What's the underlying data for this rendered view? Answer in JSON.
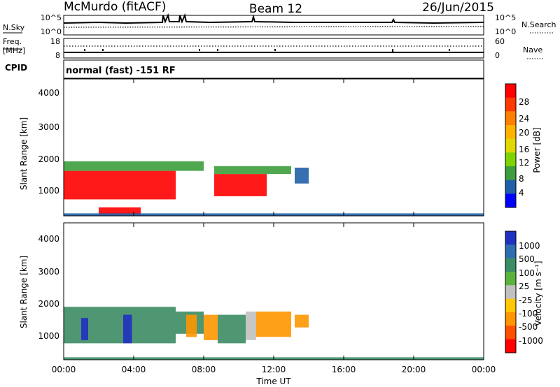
{
  "header": {
    "station": "McMurdo (fitACF)",
    "beam": "Beam 12",
    "date": "26/Jun/2015"
  },
  "top_panel": {
    "left_label": "N.Sky",
    "right_label": "N.Search",
    "left_ticks": [
      "10^5",
      "10^0"
    ],
    "right_ticks": [
      "10^5",
      "10^0"
    ]
  },
  "freq_panel": {
    "left_label_line1": "Freq.",
    "left_label_line2": "[MHz]",
    "right_label": "Nave",
    "left_ticks": [
      "18",
      "8"
    ],
    "right_ticks": [
      "60",
      "0"
    ]
  },
  "cpid": {
    "label": "CPID",
    "text": "normal (fast) -151 RF"
  },
  "x_axis": {
    "label": "Time UT",
    "ticks": [
      "00:00",
      "04:00",
      "08:00",
      "12:00",
      "16:00",
      "20:00",
      "00:00"
    ]
  },
  "panels": {
    "power": {
      "ylabel": "Slant Range [km]",
      "yticks": [
        "4000",
        "3000",
        "2000",
        "1000"
      ],
      "colorbar_label": "Power [dB]",
      "colorbar_ticks": [
        "28",
        "24",
        "20",
        "16",
        "12",
        "8",
        "4"
      ],
      "colorbar_colors": [
        "#ff0000",
        "#ff3a00",
        "#ff7f00",
        "#ffb200",
        "#e0d800",
        "#7fd400",
        "#3c9e3c",
        "#2060a8",
        "#0000ff"
      ]
    },
    "velocity": {
      "ylabel": "Slant Range [km]",
      "yticks": [
        "4000",
        "3000",
        "2000",
        "1000"
      ],
      "colorbar_label": "Velocity [m s⁻¹]",
      "colorbar_ticks": [
        "1000",
        "500",
        "100",
        "25",
        "-25",
        "-100",
        "-500",
        "-1000"
      ],
      "colorbar_colors": [
        "#2030c0",
        "#2e6eb0",
        "#3c8c64",
        "#5ab43c",
        "#c0c0c0",
        "#ffc800",
        "#ff9600",
        "#ff5000",
        "#ff0000"
      ]
    }
  },
  "chart_data": [
    {
      "type": "heatmap",
      "title": "Beam 12",
      "xlabel": "Time UT",
      "ylabel": "Slant Range [km]",
      "xlim": [
        0,
        24
      ],
      "ylim": [
        180,
        4500
      ],
      "colorbar": {
        "label": "Power [dB]",
        "range": [
          0,
          30
        ],
        "ticks": [
          4,
          8,
          12,
          16,
          20,
          24,
          28
        ]
      },
      "regions": [
        {
          "t": [
            0.0,
            6.4
          ],
          "range_km": [
            700,
            1600
          ],
          "power_db": 28
        },
        {
          "t": [
            0.0,
            8.0
          ],
          "range_km": [
            1600,
            1900
          ],
          "power_db": 12
        },
        {
          "t": [
            8.6,
            11.6
          ],
          "range_km": [
            800,
            1500
          ],
          "power_db": 28
        },
        {
          "t": [
            8.6,
            13.0
          ],
          "range_km": [
            1500,
            1750
          ],
          "power_db": 12
        },
        {
          "t": [
            2.0,
            4.4
          ],
          "range_km": [
            200,
            450
          ],
          "power_db": 28
        },
        {
          "t": [
            13.2,
            14.0
          ],
          "range_km": [
            1200,
            1700
          ],
          "power_db": 8
        },
        {
          "t": [
            0.0,
            24.0
          ],
          "range_km": [
            180,
            260
          ],
          "power_db": 6
        }
      ]
    },
    {
      "type": "heatmap",
      "title": "",
      "xlabel": "Time UT",
      "ylabel": "Slant Range [km]",
      "xlim": [
        0,
        24
      ],
      "ylim": [
        180,
        4500
      ],
      "colorbar": {
        "label": "Velocity [m s⁻¹]",
        "ticks": [
          1000,
          500,
          100,
          25,
          -25,
          -100,
          -500,
          -1000
        ]
      },
      "regions": [
        {
          "t": [
            0.0,
            6.4
          ],
          "range_km": [
            700,
            1850
          ],
          "velocity_ms": 100
        },
        {
          "t": [
            1.0,
            1.4
          ],
          "range_km": [
            800,
            1500
          ],
          "velocity_ms": 1000
        },
        {
          "t": [
            3.4,
            3.9
          ],
          "range_km": [
            700,
            1600
          ],
          "velocity_ms": 1000
        },
        {
          "t": [
            6.4,
            8.0
          ],
          "range_km": [
            1000,
            1700
          ],
          "velocity_ms": 100
        },
        {
          "t": [
            7.0,
            7.6
          ],
          "range_km": [
            900,
            1600
          ],
          "velocity_ms": -100
        },
        {
          "t": [
            8.0,
            8.8
          ],
          "range_km": [
            800,
            1600
          ],
          "velocity_ms": -100
        },
        {
          "t": [
            8.8,
            10.4
          ],
          "range_km": [
            700,
            1600
          ],
          "velocity_ms": 100
        },
        {
          "t": [
            10.4,
            11.0
          ],
          "range_km": [
            800,
            1700
          ],
          "velocity_ms": 25
        },
        {
          "t": [
            11.0,
            13.0
          ],
          "range_km": [
            900,
            1700
          ],
          "velocity_ms": -100
        },
        {
          "t": [
            13.2,
            14.0
          ],
          "range_km": [
            1200,
            1600
          ],
          "velocity_ms": -100
        },
        {
          "t": [
            0.0,
            24.0
          ],
          "range_km": [
            180,
            260
          ],
          "velocity_ms": 100
        }
      ]
    }
  ]
}
